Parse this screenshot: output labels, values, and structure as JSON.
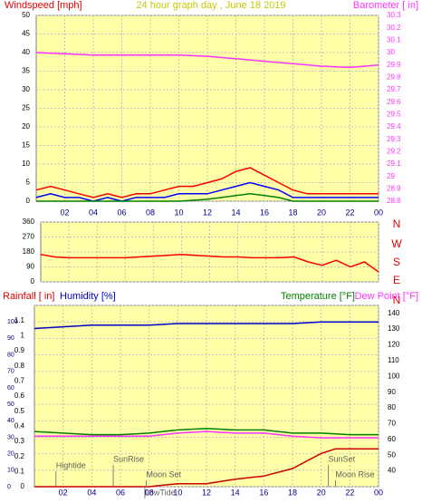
{
  "chart_data": [
    {
      "type": "line",
      "title": "24 hour graph day , June 18 2019",
      "xlabel": "",
      "ylabel": "Windspeed [mph]",
      "ylabel_right": "Barometer [ in]",
      "x_tick_labels": [
        "02",
        "04",
        "06",
        "08",
        "10",
        "12",
        "14",
        "16",
        "18",
        "20",
        "22",
        "00"
      ],
      "ylim": [
        0,
        50
      ],
      "y_ticks": [
        0,
        5,
        10,
        15,
        20,
        25,
        30,
        35,
        40,
        45,
        50
      ],
      "y2lim": [
        28.8,
        30.3
      ],
      "y2_ticks": [
        28.8,
        28.9,
        29.0,
        29.1,
        29.2,
        29.3,
        29.4,
        29.5,
        29.6,
        29.7,
        29.8,
        29.9,
        30.0,
        30.1,
        30.2,
        30.3
      ],
      "y2_tick_labels": [
        "28.8",
        "28.9",
        "29",
        "29.1",
        "29.2",
        "29.3",
        "29.4",
        "29.5",
        "29.6",
        "29.7",
        "29.8",
        "29.9",
        "30",
        "30.1",
        "30.2",
        "30.3"
      ],
      "grid": true,
      "series": [
        {
          "name": "Barometer",
          "color": "#ff33ff",
          "axis": "right",
          "x": [
            0,
            2,
            4,
            6,
            8,
            10,
            12,
            14,
            16,
            18,
            20,
            22,
            24
          ],
          "values": [
            30.0,
            29.99,
            29.98,
            29.98,
            29.98,
            29.98,
            29.97,
            29.95,
            29.93,
            29.91,
            29.89,
            29.88,
            29.9
          ]
        },
        {
          "name": "Wind gust",
          "color": "#ff0000",
          "axis": "left",
          "x": [
            0,
            1,
            2,
            3,
            4,
            5,
            6,
            7,
            8,
            9,
            10,
            11,
            12,
            13,
            14,
            15,
            16,
            17,
            18,
            19,
            20,
            21,
            22,
            23,
            24
          ],
          "values": [
            3,
            4,
            3,
            2,
            1,
            2,
            1,
            2,
            2,
            3,
            4,
            4,
            5,
            6,
            8,
            9,
            7,
            5,
            3,
            2,
            2,
            2,
            2,
            2,
            2
          ]
        },
        {
          "name": "Wind speed",
          "color": "#0000ff",
          "axis": "left",
          "x": [
            0,
            1,
            2,
            3,
            4,
            5,
            6,
            7,
            8,
            9,
            10,
            11,
            12,
            13,
            14,
            15,
            16,
            17,
            18,
            19,
            20,
            21,
            22,
            23,
            24
          ],
          "values": [
            1,
            2,
            1,
            1,
            0,
            1,
            0,
            1,
            1,
            1,
            2,
            2,
            2,
            3,
            4,
            5,
            4,
            3,
            1,
            1,
            1,
            1,
            1,
            1,
            1
          ]
        },
        {
          "name": "Wind average",
          "color": "#008000",
          "axis": "left",
          "x": [
            0,
            2,
            4,
            6,
            8,
            10,
            12,
            13,
            14,
            15,
            16,
            17,
            18,
            20,
            22,
            24
          ],
          "values": [
            0,
            0,
            0,
            0,
            0,
            0,
            0.5,
            1,
            1.5,
            2,
            1.5,
            1,
            0,
            0,
            0,
            0
          ]
        }
      ]
    },
    {
      "type": "line",
      "ylabel": "",
      "ylim": [
        0,
        360
      ],
      "y_ticks": [
        0,
        90,
        180,
        270,
        360
      ],
      "direction_labels": [
        "N",
        "W",
        "S",
        "E",
        "N"
      ],
      "grid": true,
      "series": [
        {
          "name": "Wind direction",
          "color": "#ff0000",
          "x": [
            0,
            1,
            2,
            3,
            4,
            5,
            6,
            7,
            8,
            9,
            10,
            11,
            12,
            13,
            14,
            15,
            16,
            17,
            18,
            19,
            20,
            21,
            22,
            23,
            24
          ],
          "values": [
            165,
            150,
            145,
            145,
            145,
            145,
            145,
            150,
            155,
            160,
            165,
            160,
            155,
            150,
            150,
            145,
            145,
            145,
            150,
            120,
            100,
            130,
            90,
            120,
            60
          ]
        }
      ]
    },
    {
      "type": "line",
      "ylabel": "Rainfall [ in]",
      "ylabel_2": "Humidity [%]",
      "ylabel_right": "Temperature [°F]",
      "ylabel_right_2": "Dew Point [°F]",
      "ylim_rain": [
        0,
        1.2
      ],
      "rain_ticks": [
        0,
        0.1,
        0.2,
        0.3,
        0.4,
        0.5,
        0.6,
        0.7,
        0.8,
        0.9,
        1.0,
        1.1
      ],
      "rain_tick_labels": [
        "0",
        "0.1",
        "0.2",
        "0.3",
        "0.4",
        "0.5",
        "0.6",
        "0.7",
        "0.8",
        "0.9",
        "1",
        "1.1"
      ],
      "ylim_humidity": [
        0,
        110
      ],
      "humidity_ticks": [
        0,
        10,
        20,
        30,
        40,
        50,
        60,
        70,
        80,
        90,
        100
      ],
      "ylim_temp": [
        30,
        145
      ],
      "temp_ticks": [
        40,
        50,
        60,
        70,
        80,
        90,
        100,
        110,
        120,
        130,
        140
      ],
      "x_tick_labels": [
        "02",
        "04",
        "06",
        "08",
        "10",
        "12",
        "14",
        "16",
        "18",
        "20",
        "22",
        "00"
      ],
      "grid": true,
      "annotations": [
        {
          "label": "Hightide",
          "x": 1.5
        },
        {
          "label": "SunRise",
          "x": 5.5
        },
        {
          "label": "Moon Set",
          "x": 7.8
        },
        {
          "label": "LowTide",
          "x": 7.7
        },
        {
          "label": "SunSet",
          "x": 20.5
        },
        {
          "label": "Moon Rise",
          "x": 21.0
        }
      ],
      "series": [
        {
          "name": "Humidity",
          "color": "#0000cc",
          "axis": "humidity",
          "x": [
            0,
            2,
            4,
            6,
            8,
            10,
            12,
            14,
            16,
            18,
            20,
            22,
            24
          ],
          "values": [
            96,
            97,
            98,
            98,
            98,
            99,
            99,
            99,
            99,
            99,
            100,
            100,
            100
          ]
        },
        {
          "name": "Temperature",
          "color": "#008000",
          "axis": "temp",
          "x": [
            0,
            2,
            4,
            6,
            8,
            10,
            12,
            14,
            16,
            18,
            20,
            22,
            24
          ],
          "values": [
            65,
            64,
            63,
            63,
            64,
            66,
            67,
            66,
            66,
            64,
            64,
            63,
            63
          ]
        },
        {
          "name": "Dew Point",
          "color": "#ff33ff",
          "axis": "temp",
          "x": [
            0,
            2,
            4,
            6,
            8,
            10,
            12,
            14,
            16,
            18,
            20,
            22,
            24
          ],
          "values": [
            62,
            62,
            62,
            62,
            62,
            64,
            65,
            64,
            64,
            62,
            61,
            61,
            61
          ]
        },
        {
          "name": "Rainfall",
          "color": "#cc0000",
          "axis": "rain",
          "x": [
            0,
            6,
            8,
            9,
            10,
            12,
            14,
            16,
            18,
            20,
            21,
            22,
            24
          ],
          "values": [
            0,
            0,
            0,
            0.01,
            0.02,
            0.02,
            0.05,
            0.07,
            0.12,
            0.22,
            0.25,
            0.25,
            0.25
          ]
        }
      ]
    }
  ]
}
